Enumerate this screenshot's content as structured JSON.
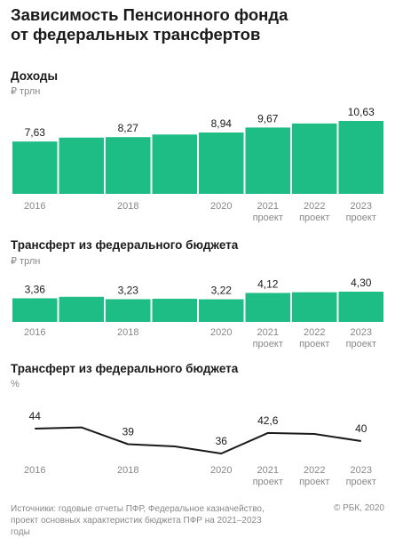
{
  "title_lines": [
    "Зависимость Пенсионного фонда",
    "от федеральных трансфертов"
  ],
  "colors": {
    "bar": "#1dbd85",
    "line": "#1a1a1a",
    "axis_text": "#888888",
    "value_text": "#1a1a1a"
  },
  "chart_data": [
    {
      "type": "bar",
      "title": "Доходы",
      "unit": "₽ трлн",
      "ylim": [
        0,
        10.63
      ],
      "categories": [
        "2016",
        "2017",
        "2018",
        "2019",
        "2020",
        "2021",
        "2022",
        "2023"
      ],
      "tick_labels": [
        "2016",
        "",
        "2018",
        "",
        "2020",
        "2021",
        "2022",
        "2023"
      ],
      "tick_sublabels": [
        "",
        "",
        "",
        "",
        "",
        "проект",
        "проект",
        "проект"
      ],
      "values": [
        7.63,
        8.2,
        8.27,
        8.65,
        8.94,
        9.67,
        10.26,
        10.63
      ],
      "data_labels": [
        "7,63",
        "",
        "8,27",
        "",
        "8,94",
        "9,67",
        "",
        "10,63"
      ]
    },
    {
      "type": "bar",
      "title": "Трансферт из федерального бюджета",
      "unit": "₽ трлн",
      "ylim": [
        0,
        4.3
      ],
      "categories": [
        "2016",
        "2017",
        "2018",
        "2019",
        "2020",
        "2021",
        "2022",
        "2023"
      ],
      "tick_labels": [
        "2016",
        "",
        "2018",
        "",
        "2020",
        "2021",
        "2022",
        "2023"
      ],
      "tick_sublabels": [
        "",
        "",
        "",
        "",
        "",
        "проект",
        "проект",
        "проект"
      ],
      "values": [
        3.36,
        3.57,
        3.23,
        3.3,
        3.22,
        4.12,
        4.22,
        4.3
      ],
      "data_labels": [
        "3,36",
        "",
        "3,23",
        "",
        "3,22",
        "4,12",
        "",
        "4,30"
      ]
    },
    {
      "type": "line",
      "title": "Трансферт из федерального бюджета",
      "unit": "%",
      "ylim": [
        36,
        44
      ],
      "categories": [
        "2016",
        "2017",
        "2018",
        "2019",
        "2020",
        "2021",
        "2022",
        "2023"
      ],
      "tick_labels": [
        "2016",
        "",
        "2018",
        "",
        "2020",
        "2021",
        "2022",
        "2023"
      ],
      "tick_sublabels": [
        "",
        "",
        "",
        "",
        "",
        "проект",
        "проект",
        "проект"
      ],
      "values": [
        44,
        44.4,
        39,
        38.3,
        36,
        42.6,
        42.3,
        40
      ],
      "data_labels": [
        "44",
        "",
        "39",
        "",
        "36",
        "42,6",
        "",
        "40"
      ]
    }
  ],
  "footer_lines": [
    "Источники: годовые отчеты ПФР, Федеральное казначейство,",
    "проект основных характеристик бюджета ПФР на 2021–2023 годы"
  ],
  "copyright": "© РБК, 2020"
}
